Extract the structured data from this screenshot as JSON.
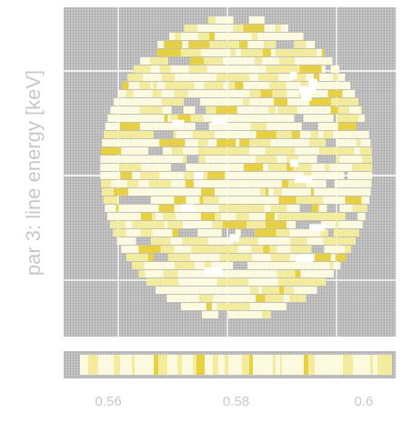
{
  "chart_data": {
    "type": "heatmap",
    "title": "",
    "xlabel": "",
    "ylabel": "par 3: line energy  [keV]",
    "x_tick_labels": [
      "0.56",
      "0.58",
      "0.6"
    ],
    "x_ticks": [
      0.56,
      0.58,
      0.6
    ],
    "xlim": [
      0.553,
      0.605
    ],
    "grid": true,
    "colors": {
      "background": "#ffffff",
      "panel": "#a8a8a8",
      "grid": "#e6e6e6",
      "cell_light": "#fffde0",
      "cell_mid": "#f6ee9a",
      "cell_dark": "#ead23a",
      "text": "#c8c8c8"
    },
    "scatter_seed": 3,
    "marginal_seed": 11
  }
}
